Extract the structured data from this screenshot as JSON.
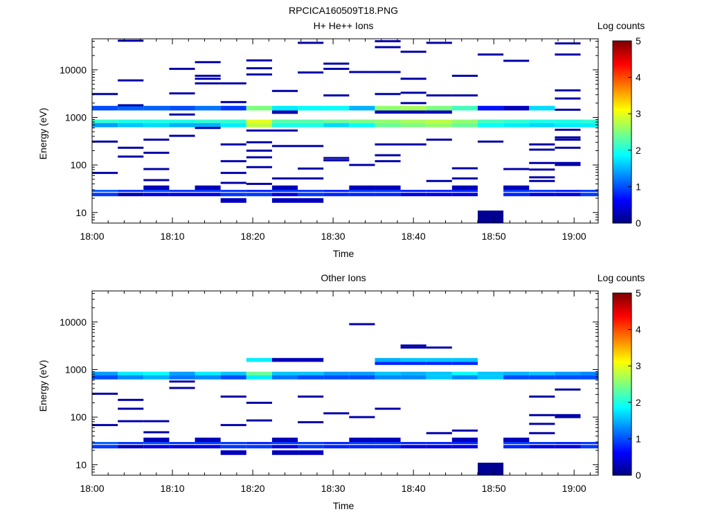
{
  "figure_title": "RPCICA160509T18.PNG",
  "colormap": [
    "#00007f",
    "#0000ff",
    "#007fff",
    "#00ffff",
    "#7fff7f",
    "#ffff00",
    "#ff7f00",
    "#ff0000",
    "#7f0000"
  ],
  "chart_data": [
    {
      "type": "heatmap",
      "title": "H+ He++ Ions",
      "xlabel": "Time",
      "ylabel": "Energy (eV)",
      "x_ticks": [
        "18:00",
        "18:10",
        "18:20",
        "18:30",
        "18:40",
        "18:50",
        "19:00"
      ],
      "x_range_min": [
        0,
        63
      ],
      "y_scale": "log",
      "y_range": [
        6,
        45000
      ],
      "y_ticks": [
        "10",
        "100",
        "1000",
        "10000"
      ],
      "colorbar": {
        "label": "Log counts",
        "ticks": [
          "0",
          "1",
          "2",
          "3",
          "4",
          "5"
        ],
        "range": [
          0,
          5
        ]
      },
      "time_bins_min": [
        0,
        3.2,
        6.4,
        9.6,
        12.8,
        16,
        19.2,
        22.4,
        25.6,
        28.8,
        32,
        35.2,
        38.4,
        41.6,
        44.8,
        48,
        51.2,
        54.4,
        57.6,
        60.8
      ],
      "channels": [
        {
          "e": [
            27,
            30
          ],
          "v": [
            1.1,
            0.9,
            1.0,
            0.9,
            0.9,
            0.9,
            0.8,
            0.9,
            0.9,
            0.8,
            0.9,
            0.9,
            0.8,
            0.8,
            0.8,
            0,
            0.9,
            0.9,
            0.8,
            0.9
          ]
        },
        {
          "e": [
            22,
            26
          ],
          "v": [
            0.9,
            0.3,
            0.5,
            0.5,
            0.5,
            0.9,
            0.9,
            0.5,
            0.9,
            0.8,
            0.8,
            0.8,
            0.5,
            0.5,
            0.5,
            0,
            0.8,
            0.5,
            0.5,
            0.9
          ]
        },
        {
          "e": [
            16,
            20
          ],
          "v": [
            0,
            0,
            0,
            0,
            0,
            0.3,
            0,
            0.3,
            0.3,
            0,
            0,
            0,
            0,
            0,
            0,
            0,
            0,
            0,
            0,
            0
          ]
        },
        {
          "e": [
            30,
            37
          ],
          "v": [
            0,
            0,
            0.3,
            0,
            0.3,
            0,
            0,
            0.3,
            0,
            0,
            0.3,
            0.3,
            0,
            0,
            0.3,
            0,
            0.3,
            0,
            0,
            0
          ]
        },
        {
          "e": [
            6,
            11
          ],
          "v": [
            0,
            0,
            0,
            0,
            0,
            0,
            0,
            0,
            0,
            0,
            0,
            0,
            0,
            0,
            0,
            0.1,
            0,
            0,
            0,
            0
          ]
        },
        {
          "e": [
            760,
            900
          ],
          "v": [
            2.1,
            2.0,
            2.0,
            2.0,
            2.1,
            2.1,
            3.0,
            2.3,
            2.3,
            2.4,
            2.5,
            2.6,
            2.7,
            2.8,
            2.6,
            2.2,
            2.1,
            2.0,
            2.0,
            2.1
          ]
        },
        {
          "e": [
            620,
            760
          ],
          "v": [
            1.4,
            1.6,
            1.7,
            1.5,
            1.5,
            1.8,
            2.8,
            2.0,
            2.0,
            1.7,
            1.9,
            2.4,
            2.5,
            2.6,
            2.4,
            1.9,
            1.8,
            1.7,
            1.8,
            1.8
          ]
        },
        {
          "e": [
            1400,
            1750
          ],
          "v": [
            1.0,
            1.1,
            1.1,
            1.0,
            1.2,
            0.9,
            2.5,
            1.8,
            1.9,
            1.9,
            1.5,
            2.6,
            2.7,
            2.5,
            2.2,
            0.7,
            0.3,
            1.7,
            0,
            0
          ]
        },
        {
          "e": [
            1200,
            1400
          ],
          "v": [
            0,
            0,
            0,
            0,
            0,
            0,
            0,
            0.3,
            0,
            0,
            0,
            0.3,
            0.3,
            0.3,
            0,
            0,
            0,
            0,
            0,
            0
          ]
        }
      ],
      "sparse_hits": [
        [
          0,
          3100
        ],
        [
          0,
          310
        ],
        [
          0,
          68
        ],
        [
          1,
          1800
        ],
        [
          1,
          230
        ],
        [
          1,
          150
        ],
        [
          1,
          41000
        ],
        [
          1,
          6000
        ],
        [
          2,
          340
        ],
        [
          2,
          180
        ],
        [
          2,
          48
        ],
        [
          2,
          82
        ],
        [
          3,
          10500
        ],
        [
          3,
          3200
        ],
        [
          3,
          410
        ],
        [
          3,
          1150
        ],
        [
          4,
          14500
        ],
        [
          4,
          7500
        ],
        [
          4,
          6500
        ],
        [
          4,
          5200
        ],
        [
          4,
          600
        ],
        [
          5,
          5200
        ],
        [
          5,
          2100
        ],
        [
          5,
          270
        ],
        [
          5,
          120
        ],
        [
          5,
          68
        ],
        [
          5,
          42
        ],
        [
          6,
          15800
        ],
        [
          6,
          10800
        ],
        [
          6,
          8000
        ],
        [
          6,
          530
        ],
        [
          6,
          300
        ],
        [
          6,
          200
        ],
        [
          6,
          145
        ],
        [
          6,
          90
        ],
        [
          6,
          40
        ],
        [
          7,
          3600
        ],
        [
          7,
          1250
        ],
        [
          7,
          530
        ],
        [
          7,
          250
        ],
        [
          7,
          52
        ],
        [
          8,
          37000
        ],
        [
          8,
          8800
        ],
        [
          8,
          250
        ],
        [
          8,
          84
        ],
        [
          8,
          52
        ],
        [
          9,
          13500
        ],
        [
          9,
          10500
        ],
        [
          9,
          2900
        ],
        [
          9,
          125
        ],
        [
          9,
          140
        ],
        [
          10,
          9000
        ],
        [
          10,
          100
        ],
        [
          11,
          40000
        ],
        [
          11,
          30000
        ],
        [
          11,
          9000
        ],
        [
          11,
          3100
        ],
        [
          11,
          270
        ],
        [
          11,
          160
        ],
        [
          11,
          120
        ],
        [
          12,
          24000
        ],
        [
          12,
          6500
        ],
        [
          12,
          3300
        ],
        [
          12,
          2000
        ],
        [
          12,
          270
        ],
        [
          13,
          37000
        ],
        [
          13,
          2900
        ],
        [
          13,
          340
        ],
        [
          13,
          46
        ],
        [
          14,
          7500
        ],
        [
          14,
          2900
        ],
        [
          14,
          85
        ],
        [
          14,
          52
        ],
        [
          15,
          21000
        ],
        [
          15,
          310
        ],
        [
          16,
          15500
        ],
        [
          16,
          82
        ],
        [
          17,
          270
        ],
        [
          17,
          210
        ],
        [
          17,
          110
        ],
        [
          17,
          80
        ],
        [
          17,
          55
        ],
        [
          17,
          46
        ],
        [
          18,
          36000
        ],
        [
          18,
          21000
        ],
        [
          18,
          3700
        ],
        [
          18,
          2500
        ],
        [
          18,
          1450
        ],
        [
          18,
          550
        ],
        [
          18,
          380
        ],
        [
          18,
          340
        ],
        [
          18,
          230
        ],
        [
          18,
          110
        ],
        [
          18,
          100
        ]
      ]
    },
    {
      "type": "heatmap",
      "title": "Other Ions",
      "xlabel": "Time",
      "ylabel": "Energy (eV)",
      "x_ticks": [
        "18:00",
        "18:10",
        "18:20",
        "18:30",
        "18:40",
        "18:50",
        "19:00"
      ],
      "x_range_min": [
        0,
        63
      ],
      "y_scale": "log",
      "y_range": [
        6,
        45000
      ],
      "y_ticks": [
        "10",
        "100",
        "1000",
        "10000"
      ],
      "colorbar": {
        "label": "Log counts",
        "ticks": [
          "0",
          "1",
          "2",
          "3",
          "4",
          "5"
        ],
        "range": [
          0,
          5
        ]
      },
      "time_bins_min": [
        0,
        3.2,
        6.4,
        9.6,
        12.8,
        16,
        19.2,
        22.4,
        25.6,
        28.8,
        32,
        35.2,
        38.4,
        41.6,
        44.8,
        48,
        51.2,
        54.4,
        57.6,
        60.8
      ],
      "channels": [
        {
          "e": [
            27,
            30
          ],
          "v": [
            1.1,
            0.9,
            1.0,
            0.9,
            0.9,
            0.9,
            0.8,
            0.9,
            0.9,
            0.8,
            0.9,
            0.9,
            0.8,
            0.8,
            0.8,
            0,
            0.9,
            0.9,
            0.8,
            0.9
          ]
        },
        {
          "e": [
            22,
            26
          ],
          "v": [
            0.9,
            0.3,
            0.5,
            0.5,
            0.5,
            0.9,
            0.9,
            0.5,
            0.9,
            0.8,
            0.8,
            0.8,
            0.5,
            0.5,
            0.5,
            0,
            0.8,
            0.5,
            0.5,
            0.9
          ]
        },
        {
          "e": [
            16,
            20
          ],
          "v": [
            0,
            0,
            0,
            0,
            0,
            0.3,
            0,
            0.3,
            0.3,
            0,
            0,
            0,
            0,
            0,
            0,
            0,
            0,
            0,
            0,
            0
          ]
        },
        {
          "e": [
            30,
            37
          ],
          "v": [
            0,
            0,
            0.3,
            0,
            0.3,
            0,
            0,
            0.3,
            0,
            0,
            0.3,
            0.3,
            0,
            0,
            0.3,
            0,
            0.3,
            0,
            0,
            0
          ]
        },
        {
          "e": [
            6,
            11
          ],
          "v": [
            0,
            0,
            0,
            0,
            0,
            0,
            0,
            0,
            0,
            0,
            0,
            0,
            0,
            0,
            0,
            0.1,
            0,
            0,
            0,
            0
          ]
        },
        {
          "e": [
            760,
            900
          ],
          "v": [
            1.4,
            1.8,
            1.9,
            1.4,
            1.8,
            1.6,
            2.4,
            1.6,
            1.6,
            1.4,
            1.4,
            1.6,
            1.5,
            1.6,
            1.9,
            1.6,
            1.5,
            1.6,
            1.4,
            1.3
          ]
        },
        {
          "e": [
            620,
            760
          ],
          "v": [
            1.0,
            1.3,
            1.5,
            1.2,
            1.3,
            1.0,
            1.8,
            1.2,
            1.0,
            1.0,
            1.0,
            1.3,
            1.3,
            1.6,
            1.3,
            1.6,
            1.0,
            1.0,
            1.0,
            1.0
          ]
        },
        {
          "e": [
            1450,
            1750
          ],
          "v": [
            0,
            0,
            0,
            0,
            0,
            0,
            1.8,
            0.3,
            0.3,
            0,
            0,
            1.5,
            1.6,
            1.6,
            1.6,
            0,
            0,
            0,
            0,
            0
          ]
        },
        {
          "e": [
            1250,
            1450
          ],
          "v": [
            0,
            0,
            0,
            0,
            0,
            0,
            0,
            0,
            0,
            0,
            0,
            0.8,
            0.8,
            0.8,
            0.8,
            0,
            0,
            0,
            0,
            0
          ]
        }
      ],
      "sparse_hits": [
        [
          0,
          310
        ],
        [
          0,
          68
        ],
        [
          1,
          230
        ],
        [
          1,
          150
        ],
        [
          1,
          82
        ],
        [
          2,
          82
        ],
        [
          2,
          48
        ],
        [
          3,
          410
        ],
        [
          3,
          560
        ],
        [
          5,
          270
        ],
        [
          5,
          68
        ],
        [
          6,
          200
        ],
        [
          6,
          85
        ],
        [
          8,
          270
        ],
        [
          8,
          78
        ],
        [
          9,
          120
        ],
        [
          10,
          9000
        ],
        [
          10,
          100
        ],
        [
          11,
          150
        ],
        [
          12,
          2900
        ],
        [
          12,
          3200
        ],
        [
          13,
          2900
        ],
        [
          13,
          46
        ],
        [
          14,
          52
        ],
        [
          17,
          270
        ],
        [
          17,
          110
        ],
        [
          17,
          72
        ],
        [
          17,
          46
        ],
        [
          18,
          380
        ],
        [
          18,
          110
        ],
        [
          18,
          100
        ]
      ]
    }
  ]
}
